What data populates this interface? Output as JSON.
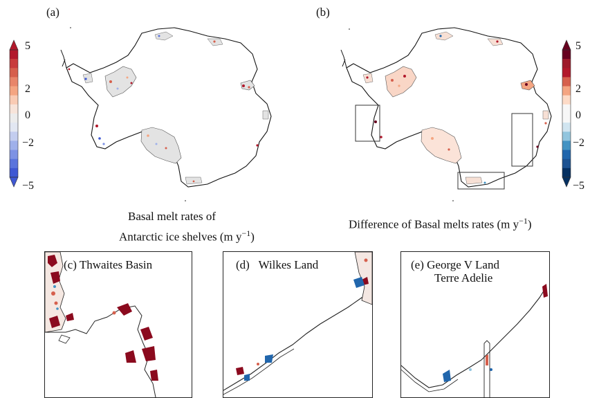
{
  "panels": {
    "a": {
      "label": "(a)",
      "caption_line1": "Basal melt rates of",
      "caption_line2_prefix": "Antarctic ice shelves (m y",
      "caption_exp": "−1",
      "caption_suffix": ")"
    },
    "b": {
      "label": "(b)",
      "caption_prefix": "Difference of Basal melts rates (m y",
      "caption_exp": "−1",
      "caption_suffix": ")"
    },
    "c": {
      "label": "(c)",
      "title": "Thwaites Basin"
    },
    "d": {
      "label": "(d)",
      "title": "Wilkes Land"
    },
    "e": {
      "label": "(e)",
      "title_line1": "George V Land",
      "title_line2": "Terre Adelie"
    }
  },
  "colorbars": {
    "left": {
      "ticks": [
        "5",
        "2",
        "0",
        "−2",
        "−5"
      ],
      "colors_top_to_bottom": [
        "#b2182b",
        "#c83c3c",
        "#d6604d",
        "#e8866a",
        "#f4a582",
        "#f9cbb4",
        "#f7e4da",
        "#ececec",
        "#e2e7f2",
        "#c3cdef",
        "#9fb0ea",
        "#7d92e4",
        "#5a74dc",
        "#3f58d3"
      ]
    },
    "right": {
      "ticks": [
        "5",
        "2",
        "0",
        "−2",
        "−5"
      ],
      "colors_top_to_bottom": [
        "#67001f",
        "#9e1a2b",
        "#b2182b",
        "#d6604d",
        "#f4a582",
        "#fddbc7",
        "#f7f7f7",
        "#f7f7f7",
        "#d1e5f0",
        "#92c5de",
        "#4393c3",
        "#2166ac",
        "#1c5291",
        "#053061"
      ]
    }
  },
  "colors": {
    "shelf_fill": "#e3e3e3",
    "coast": "#111111"
  }
}
